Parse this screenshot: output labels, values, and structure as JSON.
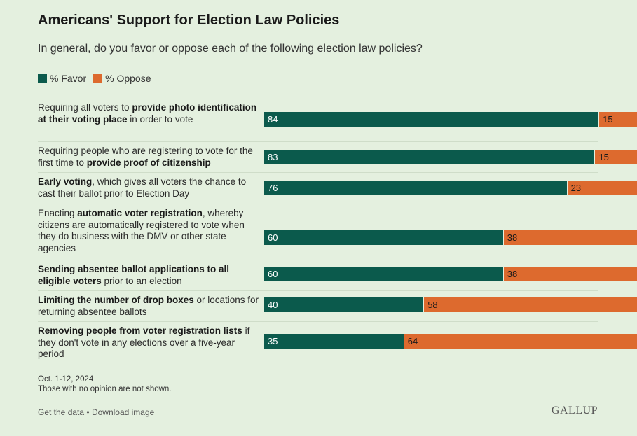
{
  "title": "Americans' Support for Election Law Policies",
  "subtitle": "In general, do you favor or oppose each of the following election law policies?",
  "legend": [
    {
      "label": "% Favor",
      "color": "#0b5a4c"
    },
    {
      "label": "% Oppose",
      "color": "#dd6a2e"
    }
  ],
  "footnote": {
    "date": "Oct. 1-12, 2024",
    "note": "Those with no opinion are not shown."
  },
  "links": {
    "get_data": "Get the data",
    "separator": "•",
    "download": "Download image"
  },
  "brand": "GALLUP",
  "chart_data": {
    "type": "bar",
    "orientation": "horizontal",
    "stacked": true,
    "title": "Americans' Support for Election Law Policies",
    "subtitle": "In general, do you favor or oppose each of the following election law policies?",
    "categories": [
      "Requiring all voters to provide photo identification at their voting place in order to vote",
      "Requiring people who are registering to vote for the first time to provide proof of citizenship",
      "Early voting, which gives all voters the chance to cast their ballot prior to Election Day",
      "Enacting automatic voter registration, whereby citizens are automatically registered to vote when they do business with the DMV or other state agencies",
      "Sending absentee ballot applications to all eligible voters prior to an election",
      "Limiting the number of drop boxes or locations for returning absentee ballots",
      "Removing people from voter registration lists if they don't vote in any elections over a five-year period"
    ],
    "label_parts": [
      [
        [
          "Requiring all voters to ",
          false
        ],
        [
          "provide photo identification at their voting place",
          true
        ],
        [
          " in order to vote",
          false
        ]
      ],
      [
        [
          "Requiring people who are registering to vote for the first time to ",
          false
        ],
        [
          "provide proof of citizenship",
          true
        ]
      ],
      [
        [
          "Early voting",
          true
        ],
        [
          ", which gives all voters the chance to cast their ballot prior to Election Day",
          false
        ]
      ],
      [
        [
          "Enacting ",
          false
        ],
        [
          "automatic voter registration",
          true
        ],
        [
          ", whereby citizens are automatically registered to vote when they do business with the DMV or other state agencies",
          false
        ]
      ],
      [
        [
          "Sending absentee ballot applications to all eligible voters",
          true
        ],
        [
          " prior to an election",
          false
        ]
      ],
      [
        [
          "Limiting the number of drop boxes",
          true
        ],
        [
          " or locations for returning absentee ballots",
          false
        ]
      ],
      [
        [
          "Removing people from voter registration lists",
          true
        ],
        [
          " if they don't vote in any elections over a five-year period",
          false
        ]
      ]
    ],
    "series": [
      {
        "name": "% Favor",
        "values": [
          84,
          83,
          76,
          60,
          60,
          40,
          35
        ],
        "color": "#0b5a4c"
      },
      {
        "name": "% Oppose",
        "values": [
          15,
          15,
          23,
          38,
          38,
          58,
          64
        ],
        "color": "#dd6a2e"
      }
    ],
    "xlim": [
      0,
      100
    ],
    "grid": false,
    "legend_position": "top-left"
  }
}
